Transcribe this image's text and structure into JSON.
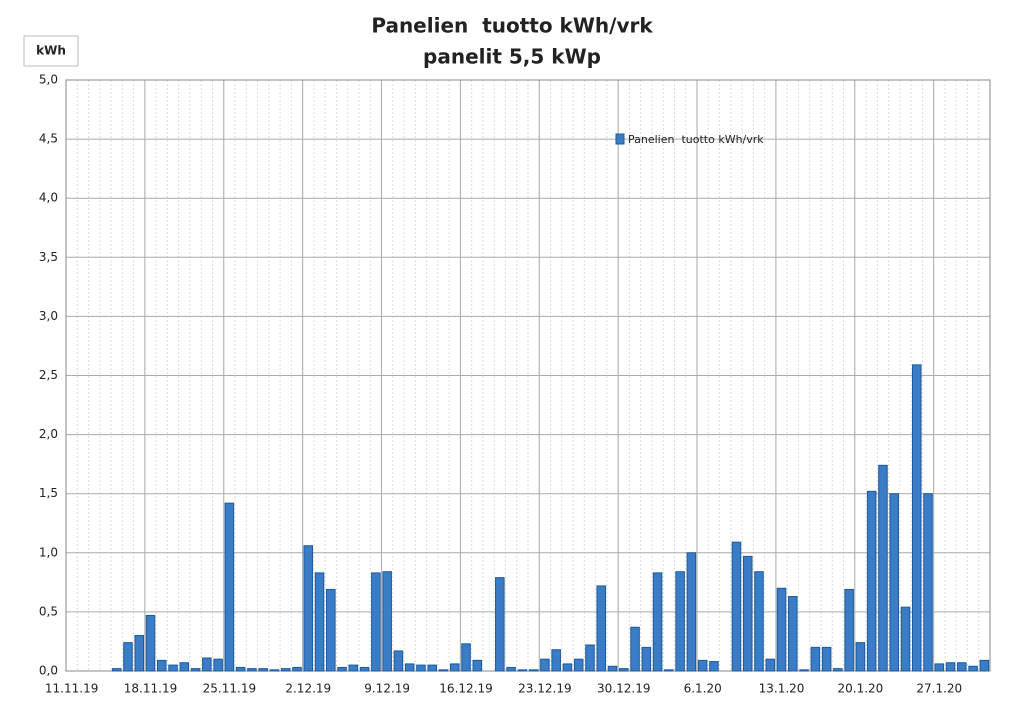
{
  "chart_data": {
    "type": "bar",
    "title": "Panelien  tuotto kWh/vrk",
    "subtitle": "panelit 5,5 kWp",
    "y_label": "kWh",
    "categories": [
      "11.11.19",
      null,
      null,
      null,
      null,
      null,
      null,
      "18.11.19",
      null,
      null,
      null,
      null,
      null,
      null,
      "25.11.19",
      null,
      null,
      null,
      null,
      null,
      null,
      "2.12.19",
      null,
      null,
      null,
      null,
      null,
      null,
      "9.12.19",
      null,
      null,
      null,
      null,
      null,
      null,
      "16.12.19",
      null,
      null,
      null,
      null,
      null,
      null,
      "23.12.19",
      null,
      null,
      null,
      null,
      null,
      null,
      "30.12.19",
      null,
      null,
      null,
      null,
      null,
      null,
      "6.1.20",
      null,
      null,
      null,
      null,
      null,
      null,
      "13.1.20",
      null,
      null,
      null,
      null,
      null,
      null,
      "20.1.20",
      null,
      null,
      null,
      null,
      null,
      null,
      "27.1.20",
      null,
      null,
      null,
      null
    ],
    "series": [
      {
        "name": "Panelien  tuotto kWh/vrk",
        "color": "#3a7dc6",
        "values": [
          0,
          0,
          0,
          0,
          0.02,
          0.24,
          0.3,
          0.47,
          0.09,
          0.05,
          0.07,
          0.02,
          0.11,
          0.1,
          1.42,
          0.03,
          0.02,
          0.02,
          0.01,
          0.02,
          0.03,
          1.06,
          0.83,
          0.69,
          0.03,
          0.05,
          0.03,
          0.83,
          0.84,
          0.17,
          0.06,
          0.05,
          0.05,
          0.01,
          0.06,
          0.23,
          0.09,
          0,
          0.79,
          0.03,
          0.01,
          0.01,
          0.1,
          0.18,
          0.06,
          0.1,
          0.22,
          0.72,
          0.04,
          0.02,
          0.37,
          0.2,
          0.83,
          0.01,
          0.84,
          1.0,
          0.09,
          0.08,
          0,
          1.09,
          0.97,
          0.84,
          0.1,
          0.7,
          0.63,
          0.01,
          0.2,
          0.2,
          0.02,
          0.69,
          0.24,
          1.52,
          1.74,
          1.5,
          0.54,
          2.59,
          1.5,
          0.06,
          0.07,
          0.07,
          0.04,
          0.09
        ]
      }
    ],
    "ylim": [
      0,
      5
    ],
    "yticks": [
      {
        "value": 0,
        "label": "0,0"
      },
      {
        "value": 0.5,
        "label": "0,5"
      },
      {
        "value": 1,
        "label": "1,0"
      },
      {
        "value": 1.5,
        "label": "1,5"
      },
      {
        "value": 2,
        "label": "2,0"
      },
      {
        "value": 2.5,
        "label": "2,5"
      },
      {
        "value": 3,
        "label": "3,0"
      },
      {
        "value": 3.5,
        "label": "3,5"
      },
      {
        "value": 4,
        "label": "4,0"
      },
      {
        "value": 4.5,
        "label": "4,5"
      },
      {
        "value": 5,
        "label": "5,0"
      }
    ],
    "grid": true
  }
}
